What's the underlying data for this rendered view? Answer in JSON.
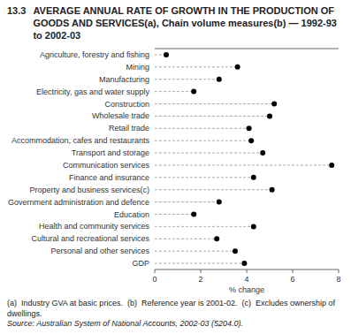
{
  "chart_data": {
    "type": "lollipop",
    "orientation": "horizontal",
    "title": "13.3",
    "subtitle": "AVERAGE ANNUAL RATE OF GROWTH IN THE PRODUCTION OF GOODS AND SERVICES(a), Chain volume measures(b) — 1992-93 to 2002-03",
    "categories": [
      "Agriculture, forestry and fishing",
      "Mining",
      "Manufacturing",
      "Electricity, gas and water supply",
      "Construction",
      "Wholesale trade",
      "Retail trade",
      "Accommodation, cafes and restaurants",
      "Transport and storage",
      "Communication services",
      "Finance and insurance",
      "Property and business services(c)",
      "Government administration and defence",
      "Education",
      "Health and community services",
      "Cultural and recreational services",
      "Personal and other services",
      "GDP"
    ],
    "values": [
      0.5,
      3.6,
      2.8,
      1.7,
      5.2,
      5.0,
      4.1,
      4.2,
      4.7,
      7.7,
      4.3,
      5.1,
      2.8,
      1.7,
      4.3,
      2.7,
      3.5,
      3.9
    ],
    "xlabel": "% change",
    "xlim": [
      0,
      8
    ],
    "xticks": [
      0,
      2,
      4,
      6,
      8
    ],
    "color": "#000000",
    "marker": "circle",
    "line_style": "dashed",
    "grid": false,
    "annotations": [
      "(a)  Industry GVA at basic prices.  (b)  Reference year is 2001-02.  (c)  Excludes ownership of dwellings.",
      "Source: Australian System of National Accounts, 2002-03 (5204.0)."
    ]
  }
}
